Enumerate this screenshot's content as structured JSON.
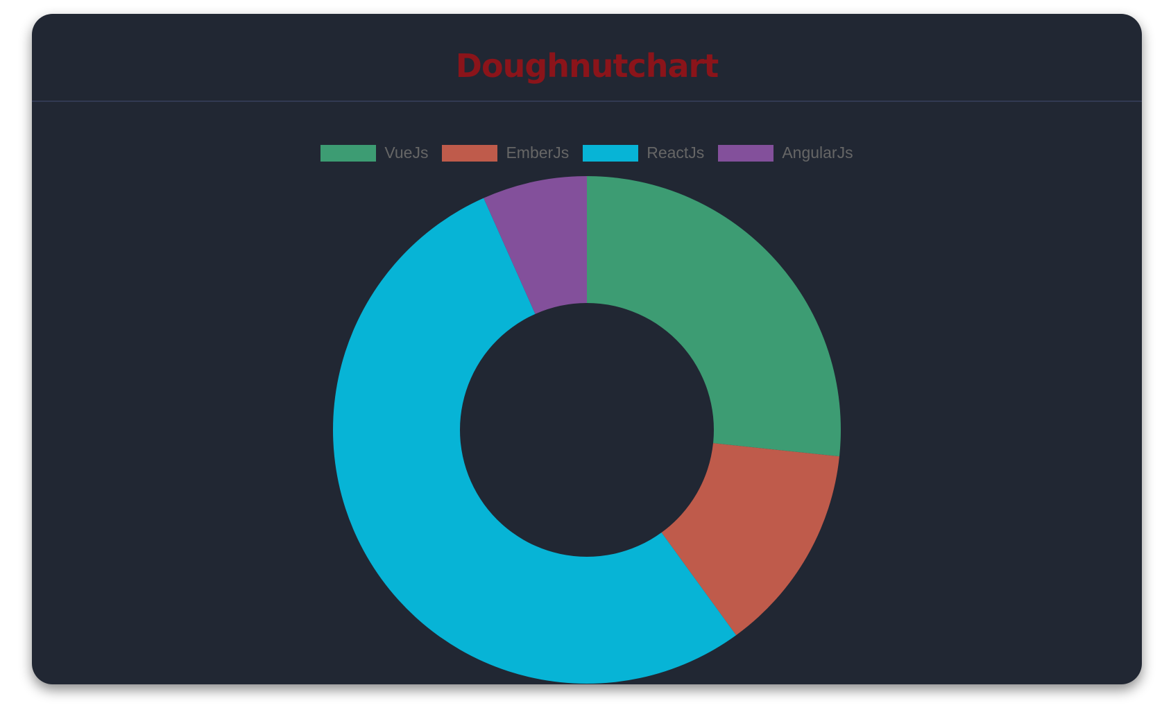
{
  "chart_data": {
    "type": "doughnut",
    "title": "Doughnutchart",
    "categories": [
      "VueJs",
      "EmberJs",
      "ReactJs",
      "AngularJs"
    ],
    "values": [
      40,
      20,
      80,
      10
    ],
    "colors": [
      "#3d9c73",
      "#bf5b4b",
      "#07b4d6",
      "#83509b"
    ],
    "legend": "top"
  },
  "colors": {
    "background": "#212733",
    "title": "#8b141a",
    "legend_text": "#666666"
  }
}
